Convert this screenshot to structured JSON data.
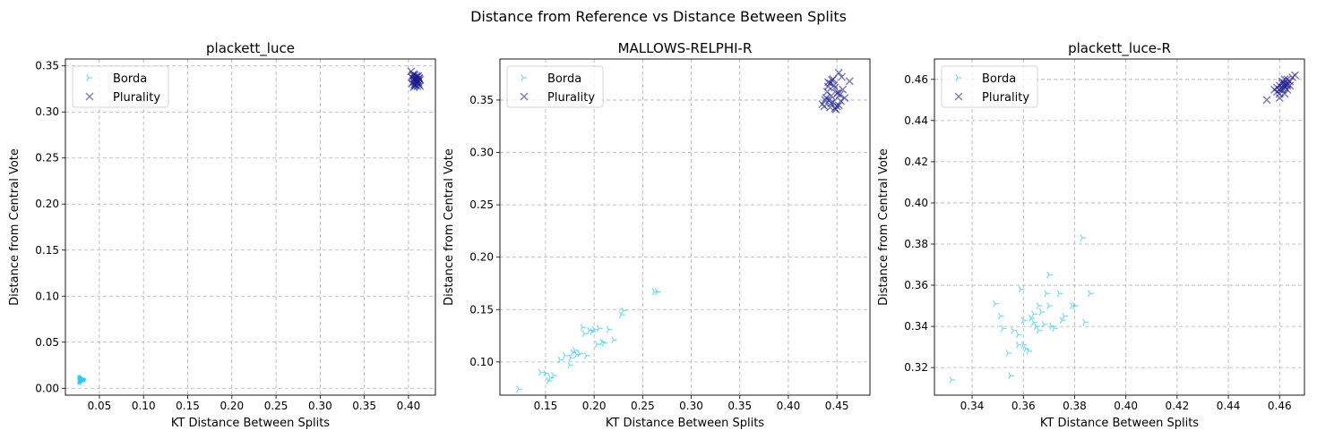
{
  "figure_title": "Distance from Reference vs Distance Between Splits",
  "colors": {
    "borda": "#29c8f0",
    "plurality": "#1a1a8c",
    "grid": "#b0b0b0"
  },
  "chart_data": [
    {
      "type": "scatter",
      "title": "plackett_luce",
      "xlabel": "KT Distance Between Splits",
      "ylabel": "Distance from Central Vote",
      "xlim": [
        0.0115,
        0.4305
      ],
      "ylim": [
        -0.0075,
        0.3575
      ],
      "xticks": [
        0.05,
        0.1,
        0.15,
        0.2,
        0.25,
        0.3,
        0.35,
        0.4
      ],
      "xtick_labels": [
        "0.05",
        "0.10",
        "0.15",
        "0.20",
        "0.25",
        "0.30",
        "0.35",
        "0.40"
      ],
      "yticks": [
        0.0,
        0.05,
        0.1,
        0.15,
        0.2,
        0.25,
        0.3,
        0.35
      ],
      "ytick_labels": [
        "0.00",
        "0.05",
        "0.10",
        "0.15",
        "0.20",
        "0.25",
        "0.30",
        "0.35"
      ],
      "grid": true,
      "legend_position": "upper-left",
      "series": [
        {
          "name": "Borda",
          "marker": "tri-right",
          "x": [
            0.028,
            0.029,
            0.03,
            0.027,
            0.031,
            0.028,
            0.029,
            0.03,
            0.028,
            0.029,
            0.031,
            0.027,
            0.03,
            0.029,
            0.028,
            0.03,
            0.029,
            0.028,
            0.031,
            0.029
          ],
          "y": [
            0.009,
            0.01,
            0.008,
            0.011,
            0.009,
            0.007,
            0.01,
            0.009,
            0.008,
            0.011,
            0.01,
            0.008,
            0.007,
            0.009,
            0.01,
            0.011,
            0.008,
            0.009,
            0.009,
            0.01
          ]
        },
        {
          "name": "Plurality",
          "marker": "x",
          "x": [
            0.403,
            0.405,
            0.407,
            0.409,
            0.411,
            0.413,
            0.406,
            0.408,
            0.41,
            0.412,
            0.404,
            0.407,
            0.409,
            0.411,
            0.405,
            0.408,
            0.41,
            0.412,
            0.406,
            0.409,
            0.407,
            0.411,
            0.404,
            0.413,
            0.408,
            0.41,
            0.406,
            0.409,
            0.412,
            0.407
          ],
          "y": [
            0.344,
            0.336,
            0.33,
            0.333,
            0.339,
            0.328,
            0.341,
            0.334,
            0.331,
            0.336,
            0.338,
            0.329,
            0.335,
            0.332,
            0.34,
            0.337,
            0.328,
            0.33,
            0.333,
            0.339,
            0.336,
            0.334,
            0.331,
            0.335,
            0.329,
            0.338,
            0.327,
            0.332,
            0.337,
            0.34
          ]
        }
      ]
    },
    {
      "type": "scatter",
      "title": "MALLOWS-RELPHI-R",
      "xlabel": "KT Distance Between Splits",
      "ylabel": "Distance from Central Vote",
      "xlim": [
        0.103,
        0.484
      ],
      "ylim": [
        0.0683,
        0.3892
      ],
      "xticks": [
        0.15,
        0.2,
        0.25,
        0.3,
        0.35,
        0.4,
        0.45
      ],
      "xtick_labels": [
        "0.15",
        "0.20",
        "0.25",
        "0.30",
        "0.35",
        "0.40",
        "0.45"
      ],
      "yticks": [
        0.1,
        0.15,
        0.2,
        0.25,
        0.3,
        0.35
      ],
      "ytick_labels": [
        "0.10",
        "0.15",
        "0.20",
        "0.25",
        "0.30",
        "0.35"
      ],
      "grid": true,
      "legend_position": "upper-left",
      "series": [
        {
          "name": "Borda",
          "marker": "tri-right",
          "x": [
            0.122,
            0.145,
            0.15,
            0.155,
            0.153,
            0.165,
            0.17,
            0.175,
            0.178,
            0.18,
            0.182,
            0.185,
            0.188,
            0.19,
            0.192,
            0.195,
            0.198,
            0.2,
            0.203,
            0.205,
            0.208,
            0.21,
            0.215,
            0.22,
            0.228,
            0.23,
            0.262,
            0.265,
            0.176,
            0.158
          ],
          "y": [
            0.074,
            0.09,
            0.089,
            0.085,
            0.082,
            0.102,
            0.106,
            0.097,
            0.109,
            0.111,
            0.107,
            0.108,
            0.133,
            0.127,
            0.106,
            0.13,
            0.129,
            0.131,
            0.117,
            0.132,
            0.119,
            0.118,
            0.131,
            0.121,
            0.145,
            0.149,
            0.167,
            0.167,
            0.104,
            0.087
          ]
        },
        {
          "name": "Plurality",
          "marker": "x",
          "x": [
            0.435,
            0.438,
            0.44,
            0.441,
            0.443,
            0.444,
            0.445,
            0.446,
            0.448,
            0.45,
            0.452,
            0.453,
            0.455,
            0.458,
            0.463,
            0.437,
            0.442,
            0.447,
            0.449,
            0.451,
            0.439,
            0.444,
            0.446,
            0.452,
            0.456,
            0.441,
            0.448,
            0.45,
            0.443,
            0.454
          ],
          "y": [
            0.346,
            0.35,
            0.358,
            0.367,
            0.343,
            0.354,
            0.369,
            0.348,
            0.362,
            0.344,
            0.376,
            0.355,
            0.372,
            0.352,
            0.368,
            0.344,
            0.35,
            0.364,
            0.341,
            0.357,
            0.352,
            0.347,
            0.37,
            0.345,
            0.36,
            0.363,
            0.342,
            0.356,
            0.366,
            0.349
          ]
        }
      ]
    },
    {
      "type": "scatter",
      "title": "plackett_luce-R",
      "xlabel": "KT Distance Between Splits",
      "ylabel": "Distance from Central Vote",
      "xlim": [
        0.3253,
        0.4697
      ],
      "ylim": [
        0.3066,
        0.4699
      ],
      "xticks": [
        0.34,
        0.36,
        0.38,
        0.4,
        0.42,
        0.44,
        0.46
      ],
      "xtick_labels": [
        "0.34",
        "0.36",
        "0.38",
        "0.40",
        "0.42",
        "0.44",
        "0.46"
      ],
      "yticks": [
        0.32,
        0.34,
        0.36,
        0.38,
        0.4,
        0.42,
        0.44,
        0.46
      ],
      "ytick_labels": [
        "0.32",
        "0.34",
        "0.36",
        "0.38",
        "0.40",
        "0.42",
        "0.44",
        "0.46"
      ],
      "grid": true,
      "legend_position": "upper-left",
      "series": [
        {
          "name": "Borda",
          "marker": "tri-right",
          "x": [
            0.332,
            0.349,
            0.351,
            0.352,
            0.354,
            0.355,
            0.356,
            0.358,
            0.359,
            0.36,
            0.36,
            0.361,
            0.362,
            0.363,
            0.364,
            0.364,
            0.365,
            0.366,
            0.366,
            0.368,
            0.369,
            0.37,
            0.37,
            0.371,
            0.372,
            0.374,
            0.375,
            0.376,
            0.379,
            0.38,
            0.383,
            0.384,
            0.386,
            0.358,
            0.367
          ],
          "y": [
            0.314,
            0.351,
            0.345,
            0.339,
            0.327,
            0.316,
            0.338,
            0.336,
            0.358,
            0.331,
            0.343,
            0.329,
            0.328,
            0.344,
            0.346,
            0.342,
            0.34,
            0.35,
            0.338,
            0.341,
            0.356,
            0.365,
            0.35,
            0.34,
            0.339,
            0.356,
            0.343,
            0.345,
            0.35,
            0.35,
            0.383,
            0.342,
            0.356,
            0.331,
            0.347
          ]
        },
        {
          "name": "Plurality",
          "marker": "x",
          "x": [
            0.455,
            0.458,
            0.459,
            0.46,
            0.46,
            0.461,
            0.461,
            0.462,
            0.462,
            0.462,
            0.463,
            0.463,
            0.464,
            0.465,
            0.466,
            0.459,
            0.46,
            0.461,
            0.463,
            0.464,
            0.462,
            0.46,
            0.461,
            0.463,
            0.462
          ],
          "y": [
            0.45,
            0.455,
            0.454,
            0.451,
            0.457,
            0.455,
            0.459,
            0.456,
            0.458,
            0.453,
            0.46,
            0.457,
            0.459,
            0.461,
            0.462,
            0.456,
            0.453,
            0.458,
            0.455,
            0.457,
            0.46,
            0.455,
            0.456,
            0.458,
            0.457
          ]
        }
      ]
    }
  ]
}
